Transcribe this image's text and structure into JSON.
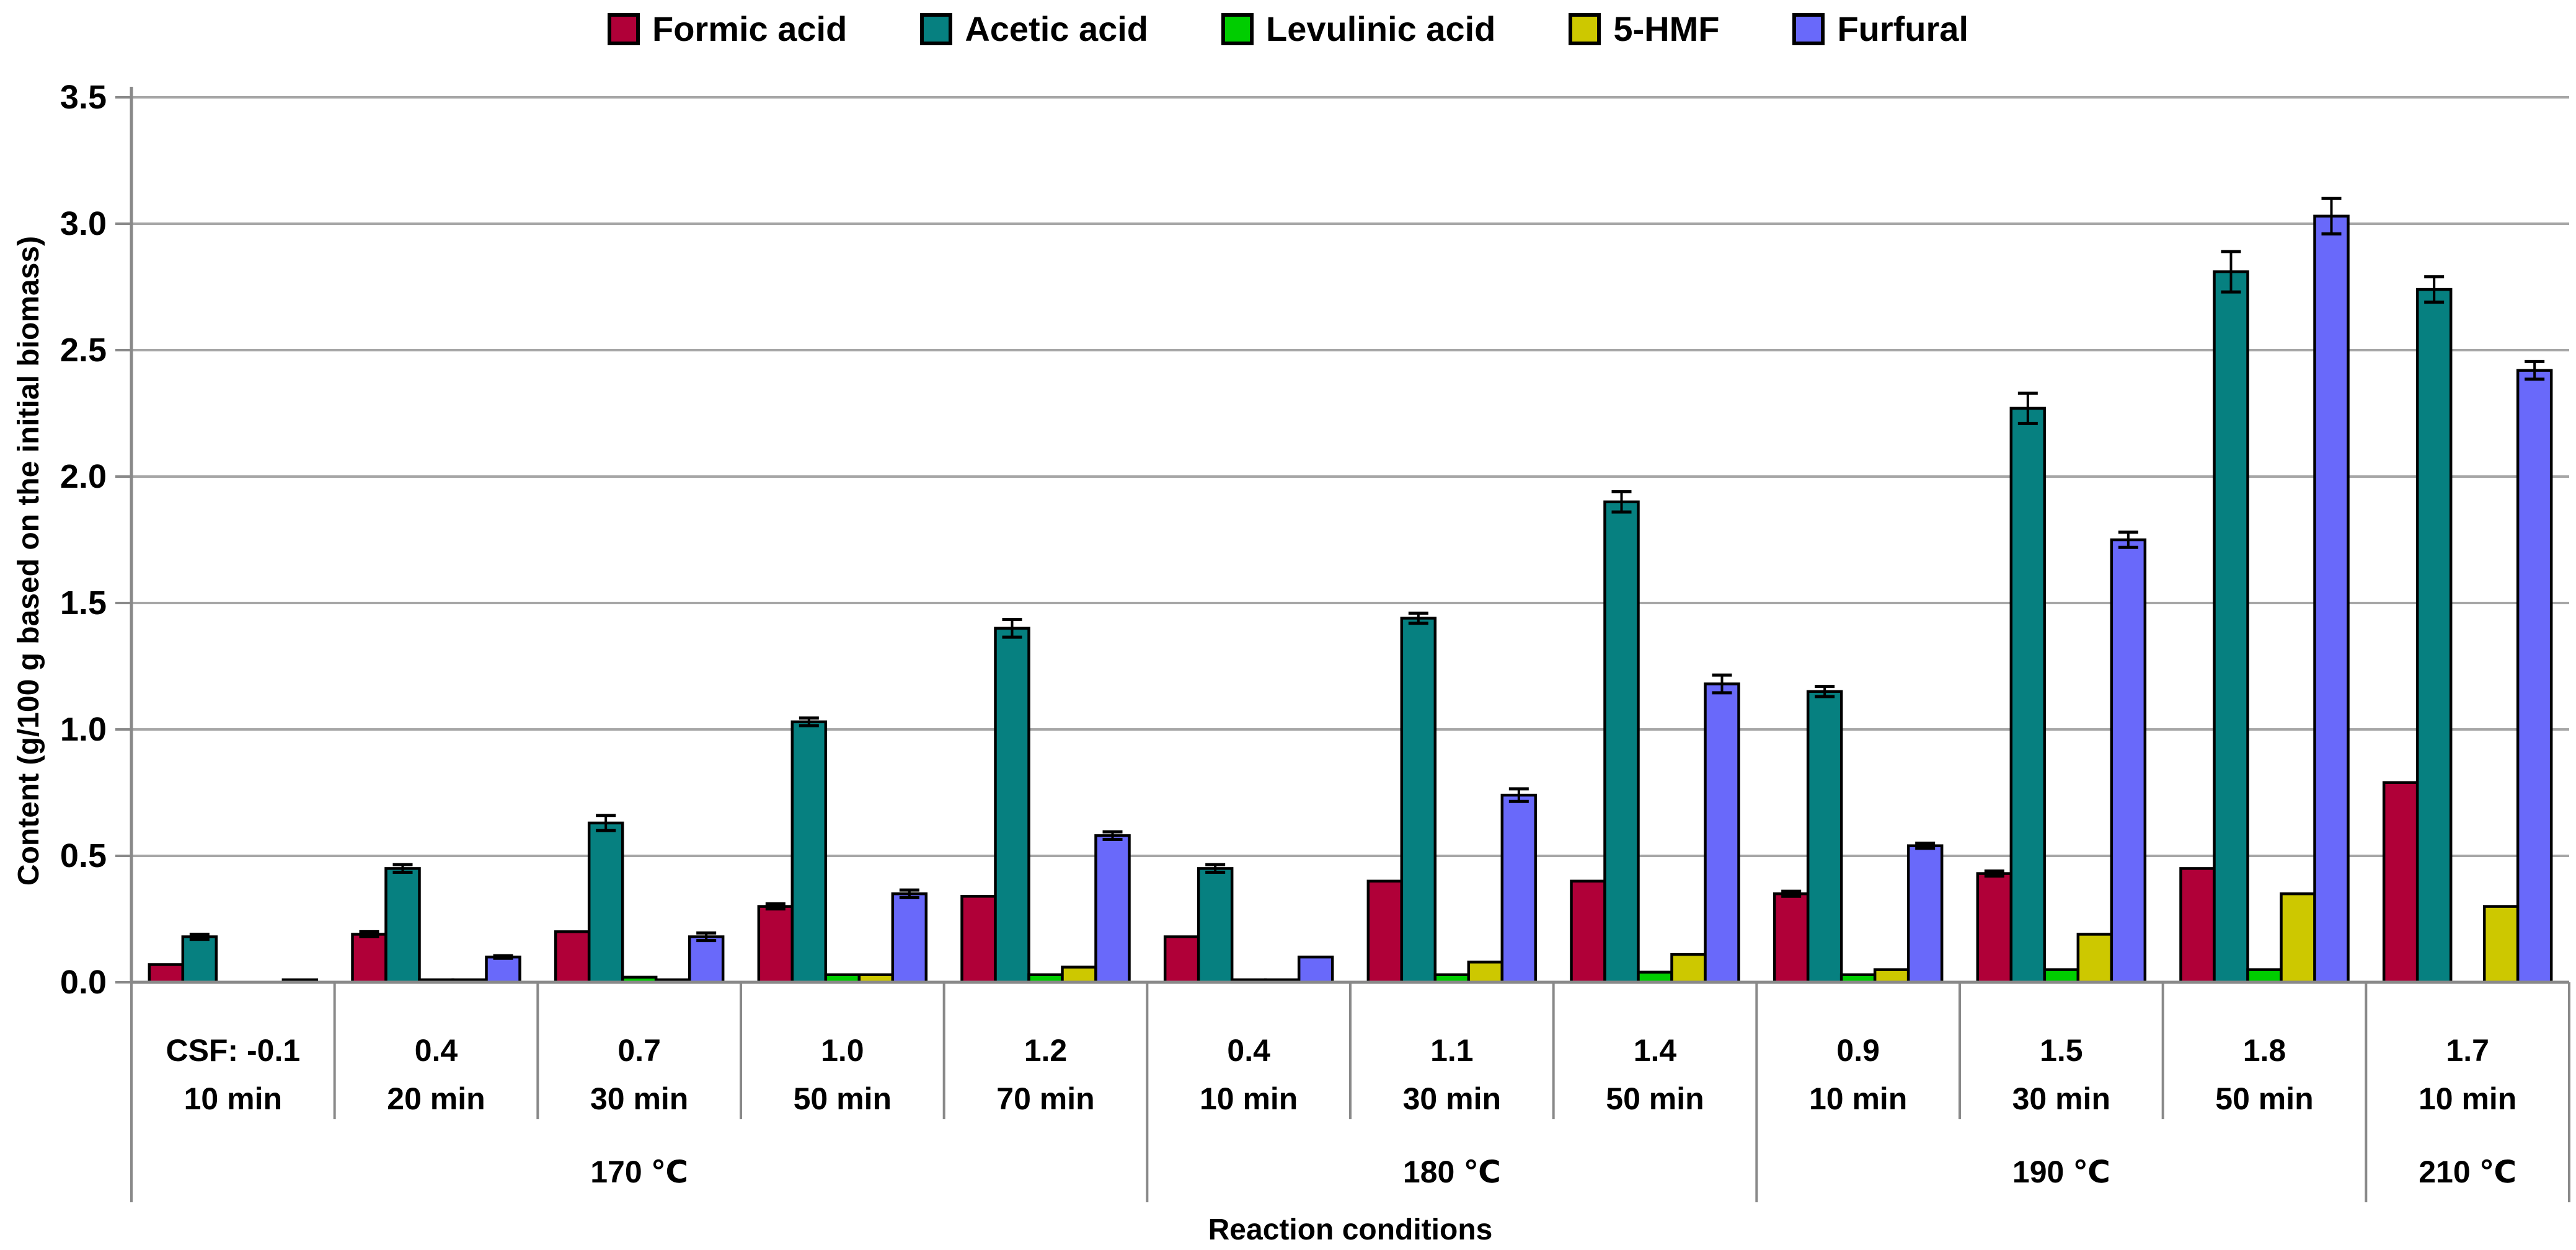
{
  "chart_data": {
    "type": "bar",
    "title": "",
    "ylabel": "Content (g/100 g based on the initial biomass)",
    "xlabel": "Reaction conditions",
    "ylim": [
      0,
      3.5
    ],
    "ytick_step": 0.5,
    "ytick_labels": [
      "0.0",
      "0.5",
      "1.0",
      "1.5",
      "2.0",
      "2.5",
      "3.0",
      "3.5"
    ],
    "grid": true,
    "legend_position": "top",
    "colors": {
      "gridline": "#A6A6A6",
      "axis": "#898989",
      "bar_border": "#000000",
      "error_bar": "#000000",
      "text": "#000000"
    },
    "csf_labels": [
      "CSF: -0.1",
      "0.4",
      "0.7",
      "1.0",
      "1.2",
      "0.4",
      "1.1",
      "1.4",
      "0.9",
      "1.5",
      "1.8",
      "1.7"
    ],
    "time_labels": [
      "10 min",
      "20 min",
      "30 min",
      "50 min",
      "70 min",
      "10 min",
      "30 min",
      "50 min",
      "10 min",
      "30 min",
      "50 min",
      "10 min"
    ],
    "temp_groups": [
      {
        "label": "170 ℃",
        "span": 5
      },
      {
        "label": "180 ℃",
        "span": 3
      },
      {
        "label": "190 ℃",
        "span": 3
      },
      {
        "label": "210 ℃",
        "span": 1
      }
    ],
    "series": [
      {
        "name": "Formic acid",
        "color": "#B00038",
        "values": [
          0.07,
          0.19,
          0.2,
          0.3,
          0.34,
          0.18,
          0.4,
          0.4,
          0.35,
          0.43,
          0.45,
          0.79
        ],
        "errors": [
          0,
          0.01,
          0,
          0.01,
          0,
          0,
          0,
          0,
          0.01,
          0.01,
          0,
          0
        ]
      },
      {
        "name": "Acetic acid",
        "color": "#068080",
        "values": [
          0.18,
          0.45,
          0.63,
          1.03,
          1.4,
          0.45,
          1.44,
          1.9,
          1.15,
          2.27,
          2.81,
          2.74
        ],
        "errors": [
          0.01,
          0.015,
          0.03,
          0.015,
          0.035,
          0.015,
          0.02,
          0.04,
          0.02,
          0.06,
          0.08,
          0.05
        ]
      },
      {
        "name": "Levulinic acid",
        "color": "#00CD00",
        "values": [
          0,
          0.01,
          0.02,
          0.03,
          0.03,
          0.01,
          0.03,
          0.04,
          0.03,
          0.05,
          0.05,
          0
        ],
        "errors": [
          0,
          0,
          0,
          0,
          0,
          0,
          0,
          0,
          0,
          0,
          0,
          0
        ]
      },
      {
        "name": "5-HMF",
        "color": "#CDC800",
        "values": [
          0,
          0.01,
          0.01,
          0.03,
          0.06,
          0.01,
          0.08,
          0.11,
          0.05,
          0.19,
          0.35,
          0.3
        ],
        "errors": [
          0,
          0,
          0,
          0,
          0,
          0,
          0,
          0,
          0,
          0,
          0,
          0
        ]
      },
      {
        "name": "Furfural",
        "color": "#6969FA",
        "values": [
          0.01,
          0.1,
          0.18,
          0.35,
          0.58,
          0.1,
          0.74,
          1.18,
          0.54,
          1.75,
          3.03,
          2.42
        ],
        "errors": [
          0,
          0.005,
          0.015,
          0.015,
          0.015,
          0,
          0.025,
          0.035,
          0.01,
          0.03,
          0.07,
          0.035
        ]
      }
    ]
  }
}
